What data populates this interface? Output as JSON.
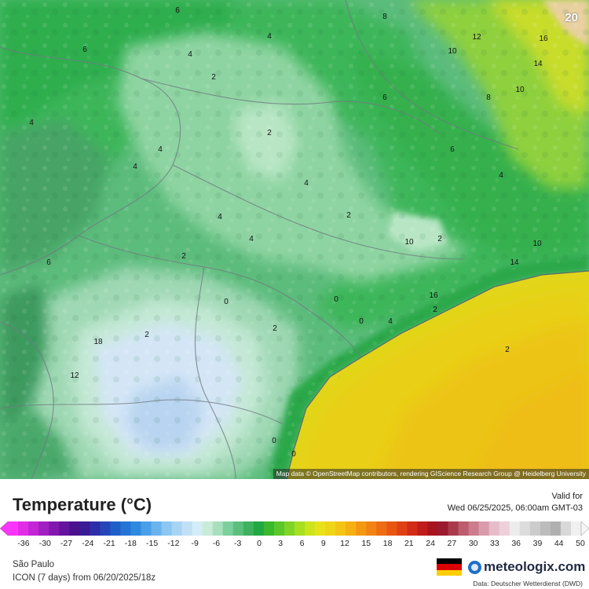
{
  "map": {
    "corner_value": "20",
    "attribution": "Map data © OpenStreetMap contributors, rendering GIScience Research Group @ Heidelberg University",
    "contour_labels": [
      "6",
      "8",
      "12",
      "16",
      "10",
      "14",
      "4",
      "2",
      "6",
      "4",
      "8",
      "10",
      "6",
      "4",
      "2",
      "4",
      "6",
      "4",
      "4",
      "4",
      "2",
      "4",
      "2",
      "4",
      "10",
      "2",
      "10",
      "6",
      "14",
      "16",
      "2",
      "4",
      "0",
      "0",
      "0",
      "2",
      "2",
      "18",
      "12",
      "2",
      "0",
      "0"
    ]
  },
  "legend": {
    "title": "Temperature (°C)",
    "valid_label": "Valid for",
    "valid_time": "Wed 06/25/2025, 06:00am GMT-03",
    "scale": [
      "-36",
      "-30",
      "-27",
      "-24",
      "-21",
      "-18",
      "-15",
      "-12",
      "-9",
      "-6",
      "-3",
      "0",
      "3",
      "6",
      "9",
      "12",
      "15",
      "18",
      "21",
      "24",
      "27",
      "30",
      "33",
      "36",
      "39",
      "44",
      "50"
    ],
    "region": "São Paulo",
    "model_run": "ICON (7 days) from 06/20/2025/18z",
    "brand": "meteologix.com",
    "data_credit": "Data: Deutscher Wetterdienst (DWD)"
  }
}
